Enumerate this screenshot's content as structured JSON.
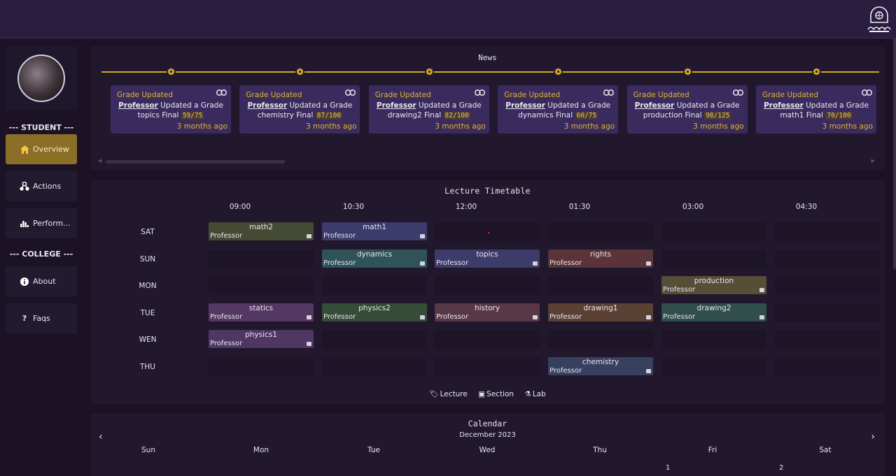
{
  "sidebar": {
    "student_heading": "--- STUDENT ---",
    "college_heading": "--- COLLEGE ---",
    "items": [
      {
        "label": "Overview",
        "icon": "home-icon"
      },
      {
        "label": "Actions",
        "icon": "actions-icon"
      },
      {
        "label": "Perform...",
        "icon": "bar-chart-icon"
      },
      {
        "label": "About",
        "icon": "info-icon"
      },
      {
        "label": "Faqs",
        "icon": "question-icon"
      }
    ]
  },
  "news": {
    "title": "News",
    "items": [
      {
        "title": "Grade Updated",
        "author": "Professor",
        "text": "Updated a Grade",
        "subject": "topics Final",
        "grade": "59/75",
        "time": "3 months ago"
      },
      {
        "title": "Grade Updated",
        "author": "Professor",
        "text": "Updated a Grade",
        "subject": "chemistry Final",
        "grade": "87/100",
        "time": "3 months ago"
      },
      {
        "title": "Grade Updated",
        "author": "Professor",
        "text": "Updated a Grade",
        "subject": "drawing2 Final",
        "grade": "82/100",
        "time": "3 months ago"
      },
      {
        "title": "Grade Updated",
        "author": "Professor",
        "text": "Updated a Grade",
        "subject": "dynamics Final",
        "grade": "60/75",
        "time": "3 months ago"
      },
      {
        "title": "Grade Updated",
        "author": "Professor",
        "text": "Updated a Grade",
        "subject": "production Final",
        "grade": "98/125",
        "time": "3 months ago"
      },
      {
        "title": "Grade Updated",
        "author": "Professor",
        "text": "Updated a Grade",
        "subject": "math1 Final",
        "grade": "70/100",
        "time": "3 months ago"
      }
    ]
  },
  "timetable": {
    "title": "Lecture Timetable",
    "times": [
      "09:00",
      "10:30",
      "12:00",
      "01:30",
      "03:00",
      "04:30"
    ],
    "days": [
      "SAT",
      "SUN",
      "MON",
      "TUE",
      "WEN",
      "THU"
    ],
    "lectures": [
      {
        "name": "math2",
        "prof": "Professor",
        "day": 0,
        "slot": 0,
        "color": "#454a35"
      },
      {
        "name": "math1",
        "prof": "Professor",
        "day": 0,
        "slot": 1,
        "color": "#3b3b6c"
      },
      {
        "name": "dynamics",
        "prof": "Professor",
        "day": 1,
        "slot": 1,
        "color": "#2f5358"
      },
      {
        "name": "topics",
        "prof": "Professor",
        "day": 1,
        "slot": 2,
        "color": "#3d3b6a"
      },
      {
        "name": "rights",
        "prof": "Professor",
        "day": 1,
        "slot": 3,
        "color": "#5a3438"
      },
      {
        "name": "production",
        "prof": "Professor",
        "day": 2,
        "slot": 4,
        "color": "#574e38"
      },
      {
        "name": "statics",
        "prof": "Professor",
        "day": 3,
        "slot": 0,
        "color": "#553763"
      },
      {
        "name": "physics2",
        "prof": "Professor",
        "day": 3,
        "slot": 1,
        "color": "#354d36"
      },
      {
        "name": "history",
        "prof": "Professor",
        "day": 3,
        "slot": 2,
        "color": "#583845"
      },
      {
        "name": "drawing1",
        "prof": "Professor",
        "day": 3,
        "slot": 3,
        "color": "#5b4134"
      },
      {
        "name": "drawing2",
        "prof": "Professor",
        "day": 3,
        "slot": 4,
        "color": "#2f4e4c"
      },
      {
        "name": "physics1",
        "prof": "Professor",
        "day": 4,
        "slot": 0,
        "color": "#4e3762"
      },
      {
        "name": "chemistry",
        "prof": "Professor",
        "day": 5,
        "slot": 3,
        "color": "#38405f"
      }
    ],
    "legend": {
      "lecture": "Lecture",
      "section": "Section",
      "lab": "Lab"
    }
  },
  "calendar": {
    "title": "Calendar",
    "month": "December 2023",
    "weekdays": [
      "Sun",
      "Mon",
      "Tue",
      "Wed",
      "Thu",
      "Fri",
      "Sat"
    ],
    "visible_days": [
      "1",
      "2"
    ]
  }
}
